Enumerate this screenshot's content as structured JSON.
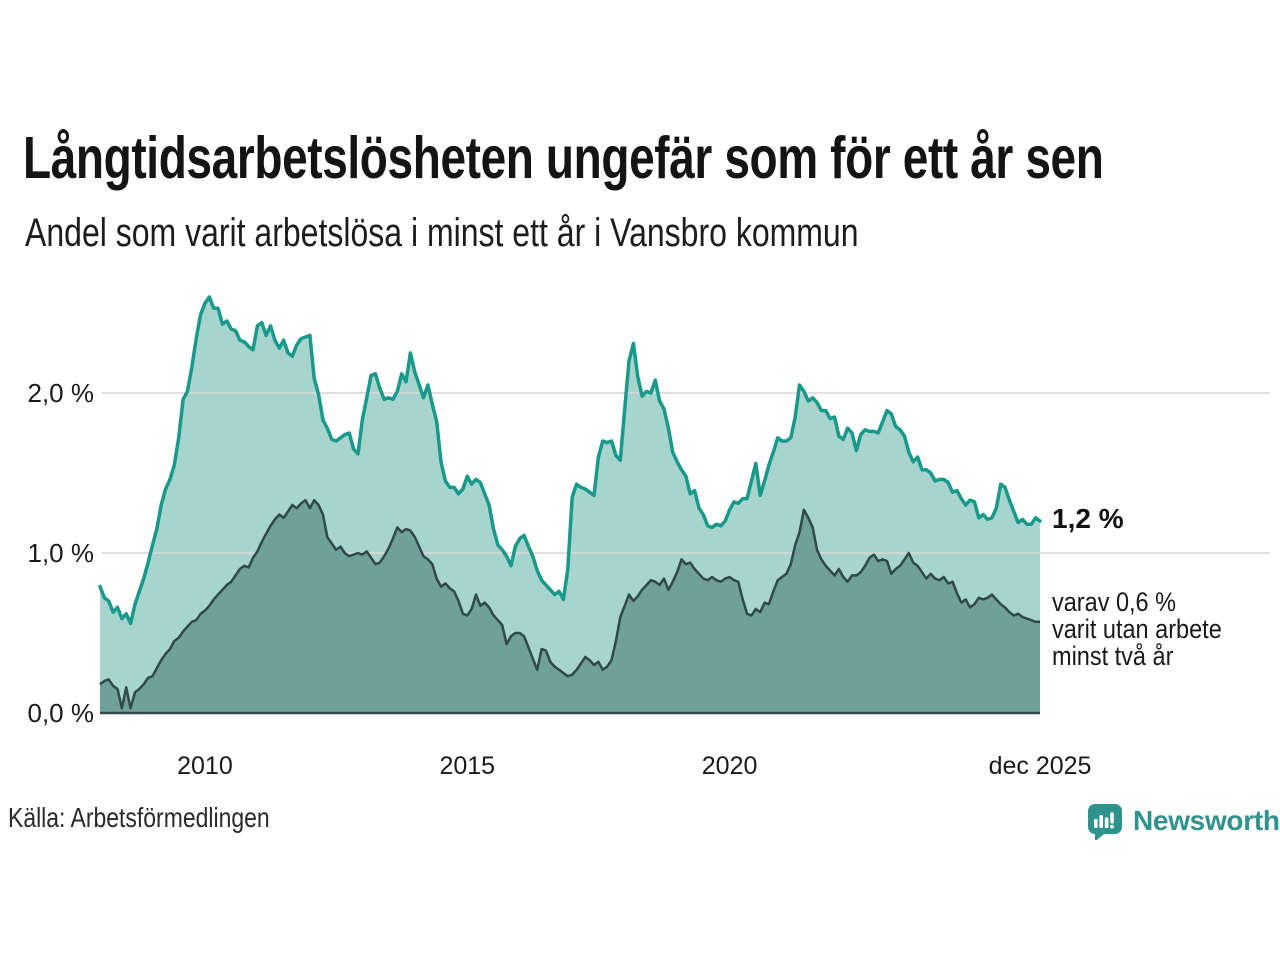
{
  "header": {
    "title": "Långtidsarbetslösheten ungefär som för ett år sen",
    "subtitle": "Andel som varit arbetslösa i minst ett år i Vansbro kommun"
  },
  "annotations": {
    "end_value_label": "1,2 %",
    "secondary_label_lines": [
      "varav 0,6 %",
      "varit utan arbete",
      "minst två år"
    ]
  },
  "footer": {
    "source": "Källa: Arbetsförmedlingen",
    "brand_name": "Newsworthy",
    "brand_color": "#2d938c"
  },
  "chart_data": {
    "type": "area",
    "unit": "%",
    "frequency": "monthly",
    "x_start": "2008-01",
    "x_end": "2025-12",
    "ylim": [
      0,
      2.65
    ],
    "grid": "horizontal",
    "legend_position": "none",
    "yticks": [
      {
        "label": "2,0 %",
        "value": 2.0
      },
      {
        "label": "1,0 %",
        "value": 1.0
      },
      {
        "label": "0,0 %",
        "value": 0.0
      }
    ],
    "xticks": [
      {
        "label": "2010",
        "month_index": 24
      },
      {
        "label": "2015",
        "month_index": 84
      },
      {
        "label": "2020",
        "month_index": 144
      },
      {
        "label": "dec 2025",
        "month_index": 215
      }
    ],
    "colors": {
      "grid": "#d9d9d9",
      "baseline": "#2f4a48"
    },
    "series": [
      {
        "name": "Andel arbetslösa minst ett år",
        "end_value": "1,2 %",
        "line_color": "#18998a",
        "fill_color": "#a7d5ce",
        "line_width": 3.5,
        "values": [
          0.79,
          0.72,
          0.7,
          0.63,
          0.66,
          0.59,
          0.62,
          0.56,
          0.68,
          0.76,
          0.84,
          0.94,
          1.05,
          1.15,
          1.3,
          1.4,
          1.46,
          1.55,
          1.72,
          1.96,
          2.01,
          2.16,
          2.34,
          2.49,
          2.56,
          2.6,
          2.53,
          2.53,
          2.43,
          2.45,
          2.4,
          2.39,
          2.33,
          2.32,
          2.29,
          2.27,
          2.42,
          2.44,
          2.36,
          2.42,
          2.33,
          2.28,
          2.33,
          2.25,
          2.23,
          2.3,
          2.34,
          2.35,
          2.36,
          2.09,
          1.99,
          1.83,
          1.78,
          1.71,
          1.7,
          1.72,
          1.74,
          1.75,
          1.65,
          1.62,
          1.83,
          1.97,
          2.11,
          2.12,
          2.03,
          1.96,
          1.97,
          1.96,
          2.01,
          2.12,
          2.07,
          2.25,
          2.13,
          2.05,
          1.97,
          2.05,
          1.93,
          1.82,
          1.57,
          1.45,
          1.41,
          1.41,
          1.37,
          1.4,
          1.48,
          1.43,
          1.46,
          1.44,
          1.37,
          1.3,
          1.15,
          1.05,
          1.02,
          0.98,
          0.92,
          1.04,
          1.09,
          1.11,
          1.04,
          0.98,
          0.89,
          0.83,
          0.8,
          0.77,
          0.74,
          0.76,
          0.71,
          0.9,
          1.35,
          1.43,
          1.41,
          1.4,
          1.38,
          1.36,
          1.6,
          1.7,
          1.69,
          1.7,
          1.61,
          1.58,
          1.9,
          2.2,
          2.31,
          2.1,
          1.98,
          2.01,
          2.0,
          2.08,
          1.95,
          1.9,
          1.78,
          1.63,
          1.57,
          1.52,
          1.48,
          1.37,
          1.39,
          1.28,
          1.24,
          1.17,
          1.16,
          1.18,
          1.17,
          1.2,
          1.27,
          1.32,
          1.31,
          1.34,
          1.34,
          1.45,
          1.56,
          1.36,
          1.45,
          1.55,
          1.63,
          1.72,
          1.7,
          1.7,
          1.72,
          1.85,
          2.05,
          2.01,
          1.95,
          1.97,
          1.94,
          1.89,
          1.89,
          1.84,
          1.85,
          1.73,
          1.71,
          1.78,
          1.75,
          1.64,
          1.74,
          1.77,
          1.76,
          1.76,
          1.75,
          1.82,
          1.89,
          1.87,
          1.79,
          1.77,
          1.73,
          1.63,
          1.57,
          1.6,
          1.52,
          1.52,
          1.5,
          1.45,
          1.46,
          1.46,
          1.44,
          1.38,
          1.39,
          1.34,
          1.3,
          1.33,
          1.32,
          1.22,
          1.24,
          1.21,
          1.22,
          1.28,
          1.43,
          1.41,
          1.33,
          1.26,
          1.19,
          1.21,
          1.18,
          1.18,
          1.22,
          1.2
        ]
      },
      {
        "name": "Varav utan arbete minst två år",
        "end_value": "0,6 %",
        "line_color": "#2f4a48",
        "fill_color": "#70a09a",
        "line_width": 2.5,
        "values": [
          0.18,
          0.2,
          0.21,
          0.17,
          0.15,
          0.03,
          0.16,
          0.03,
          0.13,
          0.15,
          0.18,
          0.22,
          0.23,
          0.28,
          0.33,
          0.37,
          0.4,
          0.45,
          0.47,
          0.51,
          0.54,
          0.57,
          0.58,
          0.62,
          0.64,
          0.67,
          0.71,
          0.74,
          0.77,
          0.8,
          0.82,
          0.86,
          0.9,
          0.92,
          0.91,
          0.97,
          1.01,
          1.07,
          1.12,
          1.17,
          1.21,
          1.24,
          1.22,
          1.26,
          1.3,
          1.28,
          1.31,
          1.33,
          1.28,
          1.33,
          1.3,
          1.24,
          1.1,
          1.06,
          1.02,
          1.04,
          1.0,
          0.98,
          0.99,
          1.0,
          0.99,
          1.01,
          0.97,
          0.93,
          0.94,
          0.98,
          1.03,
          1.09,
          1.16,
          1.13,
          1.15,
          1.14,
          1.1,
          1.04,
          0.98,
          0.96,
          0.93,
          0.84,
          0.79,
          0.81,
          0.78,
          0.76,
          0.7,
          0.62,
          0.61,
          0.65,
          0.74,
          0.67,
          0.69,
          0.66,
          0.61,
          0.58,
          0.55,
          0.43,
          0.48,
          0.5,
          0.5,
          0.48,
          0.41,
          0.34,
          0.27,
          0.4,
          0.39,
          0.32,
          0.29,
          0.27,
          0.25,
          0.23,
          0.24,
          0.27,
          0.31,
          0.35,
          0.33,
          0.3,
          0.32,
          0.27,
          0.29,
          0.33,
          0.45,
          0.6,
          0.67,
          0.74,
          0.7,
          0.73,
          0.77,
          0.8,
          0.83,
          0.82,
          0.8,
          0.84,
          0.77,
          0.82,
          0.88,
          0.96,
          0.93,
          0.94,
          0.9,
          0.87,
          0.84,
          0.83,
          0.85,
          0.83,
          0.82,
          0.84,
          0.85,
          0.83,
          0.82,
          0.71,
          0.62,
          0.61,
          0.65,
          0.63,
          0.69,
          0.68,
          0.76,
          0.83,
          0.85,
          0.87,
          0.93,
          1.05,
          1.13,
          1.27,
          1.22,
          1.16,
          1.02,
          0.96,
          0.92,
          0.89,
          0.86,
          0.9,
          0.85,
          0.82,
          0.86,
          0.86,
          0.88,
          0.92,
          0.97,
          0.99,
          0.95,
          0.96,
          0.95,
          0.87,
          0.9,
          0.92,
          0.96,
          1.0,
          0.94,
          0.92,
          0.88,
          0.84,
          0.87,
          0.84,
          0.83,
          0.85,
          0.81,
          0.82,
          0.75,
          0.69,
          0.71,
          0.66,
          0.68,
          0.72,
          0.71,
          0.72,
          0.74,
          0.71,
          0.68,
          0.66,
          0.63,
          0.61,
          0.62,
          0.6,
          0.59,
          0.58,
          0.57,
          0.57
        ]
      }
    ]
  }
}
